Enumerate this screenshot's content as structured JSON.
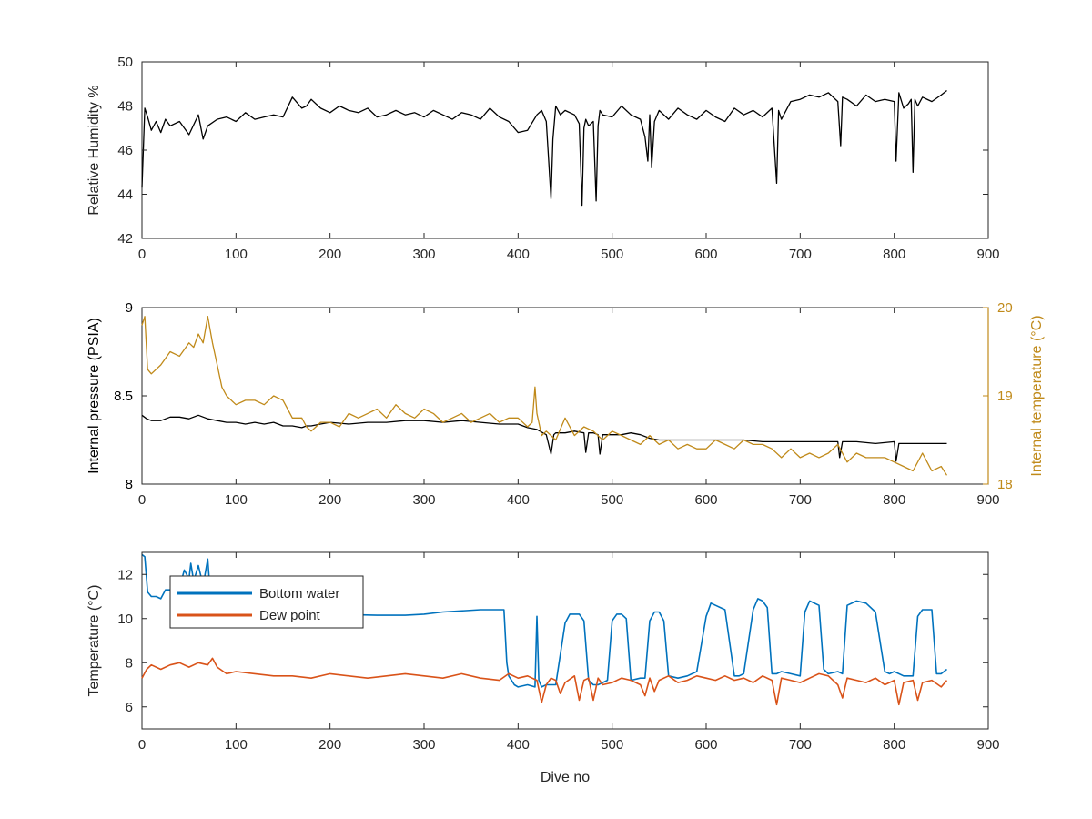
{
  "chart_data": [
    {
      "type": "line",
      "ylabel": "Relative Humidity %",
      "xlabel": "",
      "xlim": [
        0,
        900
      ],
      "ylim": [
        42,
        50
      ],
      "xticks": [
        "0",
        "100",
        "200",
        "300",
        "400",
        "500",
        "600",
        "700",
        "800",
        "900"
      ],
      "yticks": [
        "42",
        "44",
        "46",
        "48",
        "50"
      ],
      "series": [
        {
          "color": "#000000",
          "x": [
            0,
            3,
            6,
            10,
            15,
            20,
            25,
            30,
            40,
            50,
            60,
            65,
            70,
            80,
            90,
            100,
            110,
            120,
            130,
            140,
            150,
            160,
            170,
            175,
            180,
            190,
            200,
            210,
            220,
            230,
            240,
            250,
            260,
            270,
            280,
            290,
            300,
            310,
            320,
            330,
            340,
            350,
            360,
            370,
            380,
            390,
            400,
            410,
            420,
            425,
            430,
            435,
            437,
            440,
            445,
            450,
            460,
            465,
            468,
            470,
            472,
            475,
            480,
            483,
            485,
            487,
            490,
            500,
            510,
            520,
            530,
            535,
            538,
            540,
            542,
            545,
            550,
            560,
            570,
            580,
            590,
            600,
            610,
            620,
            630,
            640,
            650,
            660,
            670,
            675,
            677,
            680,
            690,
            700,
            710,
            720,
            730,
            740,
            743,
            745,
            750,
            760,
            770,
            780,
            790,
            800,
            802,
            805,
            810,
            815,
            818,
            820,
            822,
            825,
            830,
            840,
            850,
            856
          ],
          "y": [
            44.3,
            47.9,
            47.5,
            46.9,
            47.3,
            46.8,
            47.4,
            47.1,
            47.3,
            46.7,
            47.6,
            46.5,
            47.1,
            47.4,
            47.5,
            47.3,
            47.7,
            47.4,
            47.5,
            47.6,
            47.5,
            48.4,
            47.9,
            48.0,
            48.3,
            47.9,
            47.7,
            48.0,
            47.8,
            47.7,
            47.9,
            47.5,
            47.6,
            47.8,
            47.6,
            47.7,
            47.5,
            47.8,
            47.6,
            47.4,
            47.7,
            47.6,
            47.4,
            47.9,
            47.5,
            47.3,
            46.8,
            46.9,
            47.6,
            47.8,
            47.3,
            43.8,
            46.5,
            48.0,
            47.6,
            47.8,
            47.6,
            47.2,
            43.5,
            47.0,
            47.4,
            47.1,
            47.3,
            43.7,
            47.1,
            47.8,
            47.6,
            47.5,
            48.0,
            47.6,
            47.4,
            46.6,
            45.5,
            47.6,
            45.2,
            47.3,
            47.8,
            47.4,
            47.9,
            47.6,
            47.4,
            47.8,
            47.5,
            47.3,
            47.9,
            47.6,
            47.8,
            47.5,
            47.9,
            44.5,
            47.8,
            47.4,
            48.2,
            48.3,
            48.5,
            48.4,
            48.6,
            48.2,
            46.2,
            48.4,
            48.3,
            48.0,
            48.5,
            48.2,
            48.3,
            48.2,
            45.5,
            48.6,
            47.9,
            48.1,
            48.3,
            45.0,
            48.3,
            48.0,
            48.4,
            48.2,
            48.5,
            48.7
          ]
        }
      ]
    },
    {
      "type": "line",
      "ylabel": "Internal pressure (PSIA)",
      "y2label": "Internal temperature (°C)",
      "xlabel": "",
      "xlim": [
        0,
        900
      ],
      "ylim": [
        8,
        9
      ],
      "y2lim": [
        18,
        20
      ],
      "xticks": [
        "0",
        "100",
        "200",
        "300",
        "400",
        "500",
        "600",
        "700",
        "800",
        "900"
      ],
      "yticks": [
        "8",
        "8.5",
        "9"
      ],
      "y2ticks": [
        "18",
        "19",
        "20"
      ],
      "colors": {
        "left_axis": "#000000",
        "right_axis": "#c08a1a"
      },
      "series": [
        {
          "axis": "left",
          "color": "#000000",
          "x": [
            0,
            5,
            10,
            20,
            30,
            40,
            50,
            60,
            70,
            80,
            90,
            100,
            110,
            120,
            130,
            140,
            150,
            160,
            170,
            175,
            180,
            190,
            200,
            220,
            240,
            260,
            280,
            300,
            320,
            340,
            360,
            380,
            400,
            410,
            420,
            430,
            435,
            438,
            440,
            450,
            460,
            470,
            472,
            475,
            480,
            485,
            487,
            490,
            500,
            510,
            520,
            530,
            540,
            550,
            560,
            570,
            580,
            600,
            620,
            640,
            660,
            680,
            700,
            720,
            740,
            742,
            745,
            760,
            780,
            800,
            802,
            805,
            820,
            840,
            856
          ],
          "y": [
            8.39,
            8.37,
            8.36,
            8.36,
            8.38,
            8.38,
            8.37,
            8.39,
            8.37,
            8.36,
            8.35,
            8.35,
            8.34,
            8.35,
            8.34,
            8.35,
            8.33,
            8.33,
            8.32,
            8.33,
            8.33,
            8.34,
            8.35,
            8.34,
            8.35,
            8.35,
            8.36,
            8.36,
            8.35,
            8.36,
            8.35,
            8.34,
            8.34,
            8.32,
            8.31,
            8.28,
            8.17,
            8.28,
            8.29,
            8.29,
            8.3,
            8.29,
            8.18,
            8.29,
            8.29,
            8.28,
            8.17,
            8.28,
            8.28,
            8.28,
            8.29,
            8.28,
            8.26,
            8.25,
            8.25,
            8.25,
            8.25,
            8.25,
            8.25,
            8.25,
            8.24,
            8.24,
            8.24,
            8.24,
            8.24,
            8.15,
            8.24,
            8.24,
            8.23,
            8.24,
            8.13,
            8.23,
            8.23,
            8.23,
            8.23
          ]
        },
        {
          "axis": "right",
          "color": "#c08a1a",
          "x": [
            0,
            3,
            6,
            10,
            20,
            30,
            40,
            50,
            55,
            60,
            65,
            70,
            75,
            80,
            85,
            90,
            100,
            110,
            120,
            130,
            140,
            150,
            160,
            170,
            175,
            180,
            185,
            190,
            200,
            210,
            220,
            230,
            240,
            250,
            260,
            270,
            280,
            290,
            300,
            310,
            320,
            330,
            340,
            350,
            360,
            370,
            380,
            390,
            400,
            410,
            415,
            418,
            420,
            425,
            430,
            440,
            450,
            460,
            470,
            480,
            490,
            500,
            510,
            520,
            530,
            540,
            550,
            560,
            570,
            580,
            590,
            600,
            610,
            620,
            630,
            640,
            650,
            660,
            670,
            680,
            690,
            700,
            710,
            720,
            730,
            740,
            750,
            760,
            770,
            780,
            790,
            800,
            810,
            820,
            830,
            840,
            850,
            856
          ],
          "y": [
            19.8,
            19.9,
            19.3,
            19.25,
            19.35,
            19.5,
            19.45,
            19.6,
            19.55,
            19.7,
            19.6,
            19.9,
            19.6,
            19.35,
            19.1,
            19.0,
            18.9,
            18.95,
            18.95,
            18.9,
            19.0,
            18.95,
            18.75,
            18.75,
            18.65,
            18.6,
            18.65,
            18.7,
            18.7,
            18.65,
            18.8,
            18.75,
            18.8,
            18.85,
            18.75,
            18.9,
            18.8,
            18.75,
            18.85,
            18.8,
            18.7,
            18.75,
            18.8,
            18.7,
            18.75,
            18.8,
            18.7,
            18.75,
            18.75,
            18.65,
            18.7,
            19.1,
            18.8,
            18.55,
            18.6,
            18.5,
            18.75,
            18.55,
            18.65,
            18.6,
            18.5,
            18.6,
            18.55,
            18.5,
            18.45,
            18.55,
            18.45,
            18.5,
            18.4,
            18.45,
            18.4,
            18.4,
            18.5,
            18.45,
            18.4,
            18.5,
            18.45,
            18.45,
            18.4,
            18.3,
            18.4,
            18.3,
            18.35,
            18.3,
            18.35,
            18.45,
            18.25,
            18.35,
            18.3,
            18.3,
            18.3,
            18.25,
            18.2,
            18.15,
            18.35,
            18.15,
            18.2,
            18.1
          ]
        }
      ]
    },
    {
      "type": "line",
      "ylabel": "Temperature (°C)",
      "xlabel": "Dive no",
      "xlim": [
        0,
        900
      ],
      "ylim": [
        5,
        13
      ],
      "xticks": [
        "0",
        "100",
        "200",
        "300",
        "400",
        "500",
        "600",
        "700",
        "800",
        "900"
      ],
      "yticks": [
        "6",
        "8",
        "10",
        "12"
      ],
      "legend": {
        "position": "top-left",
        "entries": [
          "Bottom water",
          "Dew point"
        ]
      },
      "series": [
        {
          "name": "Bottom water",
          "color": "#0072bd",
          "x": [
            0,
            3,
            6,
            10,
            15,
            20,
            25,
            30,
            35,
            40,
            45,
            50,
            52,
            55,
            60,
            65,
            70,
            72,
            75,
            80,
            90,
            100,
            150,
            200,
            250,
            280,
            300,
            320,
            340,
            360,
            380,
            385,
            388,
            390,
            393,
            396,
            400,
            410,
            418,
            420,
            422,
            425,
            430,
            440,
            450,
            455,
            460,
            465,
            470,
            475,
            480,
            485,
            490,
            495,
            500,
            505,
            510,
            515,
            520,
            530,
            535,
            540,
            545,
            550,
            555,
            560,
            570,
            580,
            590,
            600,
            605,
            610,
            620,
            630,
            635,
            640,
            650,
            655,
            660,
            665,
            670,
            675,
            680,
            690,
            700,
            705,
            710,
            720,
            725,
            730,
            740,
            745,
            750,
            760,
            770,
            780,
            790,
            795,
            800,
            810,
            820,
            825,
            830,
            840,
            845,
            850,
            856
          ],
          "y": [
            12.9,
            12.8,
            11.2,
            11.0,
            11.0,
            10.9,
            11.3,
            11.3,
            11.2,
            11.4,
            12.2,
            11.8,
            12.5,
            11.7,
            12.4,
            11.5,
            12.7,
            11.5,
            11.0,
            10.8,
            10.6,
            10.5,
            10.3,
            10.2,
            10.15,
            10.15,
            10.2,
            10.3,
            10.35,
            10.4,
            10.4,
            10.4,
            8.0,
            7.4,
            7.2,
            7.0,
            6.9,
            7.0,
            6.9,
            10.1,
            7.2,
            6.9,
            7.0,
            7.0,
            9.8,
            10.2,
            10.2,
            10.2,
            9.9,
            7.2,
            7.0,
            7.0,
            7.1,
            7.2,
            9.9,
            10.2,
            10.2,
            10.0,
            7.2,
            7.3,
            7.3,
            9.9,
            10.3,
            10.3,
            9.9,
            7.4,
            7.3,
            7.4,
            7.6,
            10.1,
            10.7,
            10.6,
            10.4,
            7.4,
            7.4,
            7.5,
            10.4,
            10.9,
            10.8,
            10.5,
            7.5,
            7.5,
            7.6,
            7.5,
            7.4,
            10.3,
            10.8,
            10.6,
            7.7,
            7.5,
            7.6,
            7.5,
            10.6,
            10.8,
            10.7,
            10.3,
            7.6,
            7.5,
            7.6,
            7.4,
            7.4,
            10.1,
            10.4,
            10.4,
            7.5,
            7.5,
            7.7
          ]
        },
        {
          "name": "Dew point",
          "color": "#d95319",
          "x": [
            0,
            5,
            10,
            20,
            30,
            40,
            50,
            60,
            70,
            75,
            80,
            90,
            100,
            120,
            140,
            160,
            180,
            200,
            220,
            240,
            260,
            280,
            300,
            320,
            340,
            360,
            380,
            390,
            400,
            410,
            420,
            425,
            430,
            435,
            440,
            445,
            450,
            460,
            465,
            470,
            475,
            480,
            485,
            490,
            500,
            510,
            520,
            530,
            535,
            540,
            545,
            550,
            560,
            570,
            580,
            590,
            600,
            610,
            620,
            630,
            640,
            650,
            660,
            670,
            675,
            680,
            690,
            700,
            710,
            720,
            730,
            740,
            745,
            750,
            760,
            770,
            780,
            790,
            800,
            805,
            810,
            820,
            825,
            830,
            840,
            850,
            856
          ],
          "y": [
            7.3,
            7.7,
            7.9,
            7.7,
            7.9,
            8.0,
            7.8,
            8.0,
            7.9,
            8.2,
            7.8,
            7.5,
            7.6,
            7.5,
            7.4,
            7.4,
            7.3,
            7.5,
            7.4,
            7.3,
            7.4,
            7.5,
            7.4,
            7.3,
            7.5,
            7.3,
            7.2,
            7.5,
            7.3,
            7.4,
            7.2,
            6.2,
            7.0,
            7.3,
            7.2,
            6.6,
            7.1,
            7.4,
            6.3,
            7.2,
            7.3,
            6.3,
            7.3,
            7.0,
            7.1,
            7.3,
            7.2,
            7.0,
            6.5,
            7.3,
            6.7,
            7.2,
            7.4,
            7.1,
            7.2,
            7.4,
            7.3,
            7.2,
            7.4,
            7.2,
            7.3,
            7.1,
            7.4,
            7.2,
            6.1,
            7.3,
            7.2,
            7.1,
            7.3,
            7.5,
            7.4,
            7.0,
            6.4,
            7.3,
            7.2,
            7.1,
            7.3,
            7.0,
            7.2,
            6.1,
            7.1,
            7.2,
            6.3,
            7.1,
            7.2,
            6.9,
            7.2
          ]
        }
      ]
    }
  ]
}
